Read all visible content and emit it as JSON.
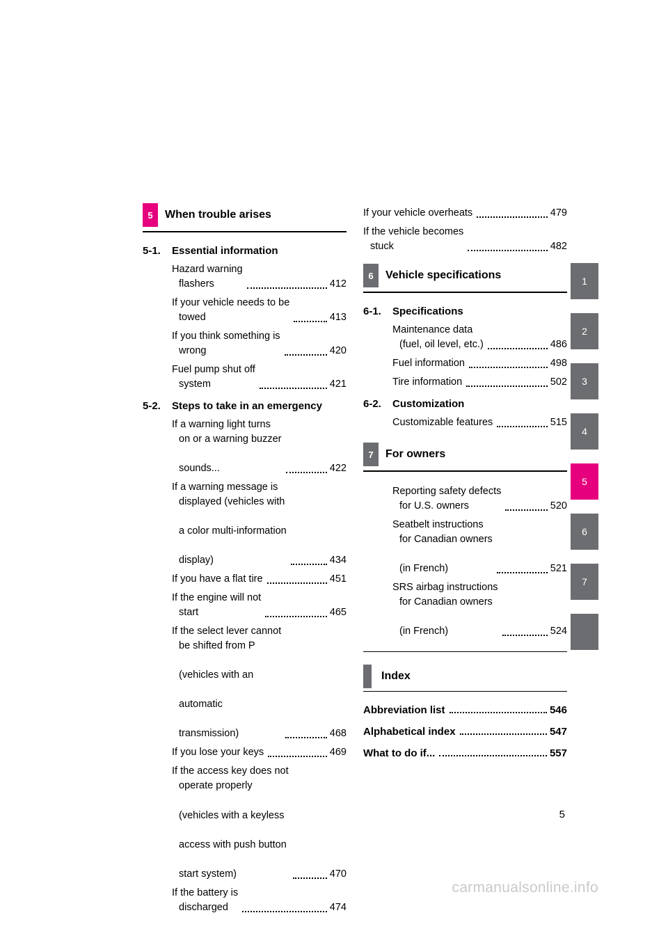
{
  "colors": {
    "magenta": "#e6007e",
    "gray": "#6c6d70",
    "text": "#000000",
    "bg": "#ffffff",
    "watermark": "#c9c9c9"
  },
  "page_number": "5",
  "watermark": "carmanualsonline.info",
  "side_tabs": [
    {
      "label": "1",
      "active": false
    },
    {
      "label": "2",
      "active": false
    },
    {
      "label": "3",
      "active": false
    },
    {
      "label": "4",
      "active": false
    },
    {
      "label": "5",
      "active": true
    },
    {
      "label": "6",
      "active": false
    },
    {
      "label": "7",
      "active": false
    },
    {
      "label": "",
      "active": false
    }
  ],
  "left": {
    "chapter": {
      "chip": "5",
      "chip_bg": "#e6007e",
      "title": "When trouble arises"
    },
    "sections": [
      {
        "num": "5-1.",
        "title": "Essential information",
        "entries": [
          {
            "lines": [
              "Hazard warning",
              "flashers"
            ],
            "page": "412"
          },
          {
            "lines": [
              "If your vehicle needs to be",
              "towed"
            ],
            "page": "413"
          },
          {
            "lines": [
              "If you think something is",
              "wrong"
            ],
            "page": "420"
          },
          {
            "lines": [
              "Fuel pump shut off",
              "system"
            ],
            "page": "421"
          }
        ]
      },
      {
        "num": "5-2.",
        "title": "Steps to take in an emergency",
        "entries": [
          {
            "lines": [
              "If a warning light turns",
              "on or a warning buzzer",
              "sounds..."
            ],
            "page": "422"
          },
          {
            "lines": [
              "If a warning message is",
              "displayed (vehicles with",
              "a color multi-information",
              "display)"
            ],
            "page": "434"
          },
          {
            "lines": [
              "If you have a flat tire"
            ],
            "page": "451"
          },
          {
            "lines": [
              "If the engine will not",
              "start"
            ],
            "page": "465"
          },
          {
            "lines": [
              "If the select lever cannot",
              "be shifted from P",
              "(vehicles with an",
              "automatic",
              "transmission)"
            ],
            "page": "468"
          },
          {
            "lines": [
              "If you lose your keys"
            ],
            "page": "469"
          },
          {
            "lines": [
              "If the access key does not",
              "operate properly",
              "(vehicles with a keyless",
              "access with push button",
              "start system)"
            ],
            "page": "470"
          },
          {
            "lines": [
              "If the battery is",
              "discharged"
            ],
            "page": "474"
          }
        ]
      }
    ]
  },
  "right": {
    "pre_entries": [
      {
        "lines": [
          "If your vehicle overheats"
        ],
        "page": "479"
      },
      {
        "lines": [
          "If the vehicle becomes",
          "stuck"
        ],
        "page": "482"
      }
    ],
    "chapter6": {
      "chip": "6",
      "chip_bg": "#6c6d70",
      "title": "Vehicle specifications"
    },
    "sections6": [
      {
        "num": "6-1.",
        "title": "Specifications",
        "entries": [
          {
            "lines": [
              "Maintenance data",
              "(fuel, oil level, etc.)"
            ],
            "page": "486"
          },
          {
            "lines": [
              "Fuel information"
            ],
            "page": "498"
          },
          {
            "lines": [
              "Tire information"
            ],
            "page": "502"
          }
        ]
      },
      {
        "num": "6-2.",
        "title": "Customization",
        "entries": [
          {
            "lines": [
              "Customizable features"
            ],
            "page": "515"
          }
        ]
      }
    ],
    "chapter7": {
      "chip": "7",
      "chip_bg": "#6c6d70",
      "title": "For owners"
    },
    "entries7": [
      {
        "lines": [
          "Reporting safety defects",
          "for U.S. owners"
        ],
        "page": "520"
      },
      {
        "lines": [
          "Seatbelt instructions",
          "for Canadian owners",
          "(in French)"
        ],
        "page": "521"
      },
      {
        "lines": [
          "SRS airbag instructions",
          "for Canadian owners",
          "(in French)"
        ],
        "page": "524"
      }
    ],
    "index_title": "Index",
    "index_entries": [
      {
        "label": "Abbreviation list",
        "page": "546"
      },
      {
        "label": "Alphabetical index",
        "page": "547"
      },
      {
        "label": "What to do if...",
        "page": "557"
      }
    ]
  }
}
